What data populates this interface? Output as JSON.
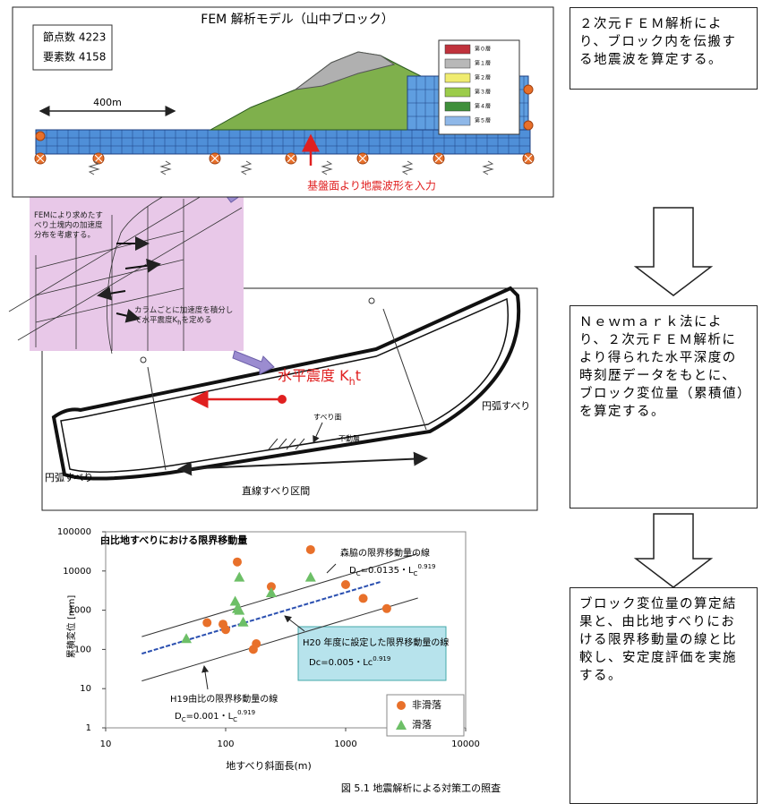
{
  "fem_panel": {
    "title": "FEM 解析モデル（山中ブロック）",
    "stats": [
      "節点数 4223",
      "要素数 4158"
    ],
    "scale_label": "400m",
    "layers": [
      {
        "label": "第０層",
        "color": "#c0323c"
      },
      {
        "label": "第１層",
        "color": "#b8b8b8"
      },
      {
        "label": "第２層",
        "color": "#f0ec70"
      },
      {
        "label": "第３層",
        "color": "#9ccc4a"
      },
      {
        "label": "第４層",
        "color": "#3f8f3a"
      },
      {
        "label": "第５層",
        "color": "#8fb8e8"
      }
    ],
    "input_label": "基盤面より地震波形を入力"
  },
  "steps": [
    "２次元ＦＥＭ解析により、ブロック内を伝搬する地震波を算定する。",
    "Ｎｅｗｍａｒｋ法により、２次元ＦＥＭ解析により得られた水平深度の時刻歴データをもとに、ブロック変位量（累積値）を算定する。",
    "ブロック変位量の算定結果と、由比地すべりにおける限界移動量の線と比較し、安定度評価を実施する。"
  ],
  "pink_panel": {
    "note1": "FEMにより求めたすべり土塊内の加速度分布を考慮する。",
    "note2": [
      {
        "text": "カラムごとに加速度を積分して水平震度K"
      },
      {
        "text": "h",
        "shift": "sub"
      },
      {
        "text": "を定める"
      }
    ]
  },
  "slope": {
    "kh_label": [
      {
        "text": "水平震度 K"
      },
      {
        "text": "h",
        "shift": "sub"
      },
      {
        "text": "t"
      }
    ],
    "arc_left": "円弧すべり",
    "arc_right": "円弧すべり",
    "slip_surface": "すべり面",
    "stable_layer": "不動層",
    "straight_section": "直線すべり区間"
  },
  "chart_data": {
    "type": "scatter",
    "title": "由比地すべりにおける限界移動量",
    "x_label": "地すべり斜面長(m)",
    "y_label": "累積変位 [mm]",
    "log_x": true,
    "log_y": true,
    "xlim": [
      10,
      10000
    ],
    "ylim": [
      1,
      100000
    ],
    "xticks": [
      10,
      100,
      1000,
      10000
    ],
    "yticks": [
      1,
      10,
      100,
      1000,
      10000,
      100000
    ],
    "series": [
      {
        "name": "非滑落",
        "color": "#e8702a",
        "marker": "circle",
        "x": [
          125,
          510,
          240,
          1000,
          1400,
          2200,
          70,
          95,
          100,
          180,
          170
        ],
        "values": [
          17000,
          35000,
          4000,
          4500,
          2000,
          1100,
          480,
          440,
          320,
          140,
          100
        ]
      },
      {
        "name": "滑落",
        "color": "#6dbf67",
        "marker": "triangle",
        "x": [
          130,
          120,
          125,
          130,
          140,
          240,
          510,
          47
        ],
        "values": [
          7000,
          1700,
          1100,
          1000,
          500,
          2800,
          7000,
          190
        ]
      }
    ],
    "lines": [
      {
        "name": "森脇の限界移動量の線",
        "color": "#333333",
        "x": [
          20,
          4000
        ],
        "values": [
          212,
          27600
        ],
        "formula": [
          {
            "text": "D"
          },
          {
            "text": "C",
            "shift": "sub"
          },
          {
            "text": "=0.0135・L"
          },
          {
            "text": "C",
            "shift": "sub"
          },
          {
            "text": "0.919",
            "shift": "super"
          }
        ]
      },
      {
        "name": "H20 年度に設定した限界移動量の線",
        "color": "#2a4fb0",
        "x": [
          20,
          2000
        ],
        "values": [
          78,
          5400
        ],
        "formula": [
          {
            "text": "Dc=0.005・Lc"
          },
          {
            "text": "0.919",
            "shift": "super"
          }
        ]
      },
      {
        "name": "H19由比の限界移動量の線",
        "color": "#333333",
        "x": [
          20,
          4000
        ],
        "values": [
          15.7,
          2043
        ],
        "formula": [
          {
            "text": "D"
          },
          {
            "text": "C",
            "shift": "sub"
          },
          {
            "text": "=0.001・L"
          },
          {
            "text": "C",
            "shift": "sub"
          },
          {
            "text": "0.919",
            "shift": "super"
          }
        ]
      }
    ]
  },
  "caption": "図 5.1 地震解析による対策工の照査"
}
